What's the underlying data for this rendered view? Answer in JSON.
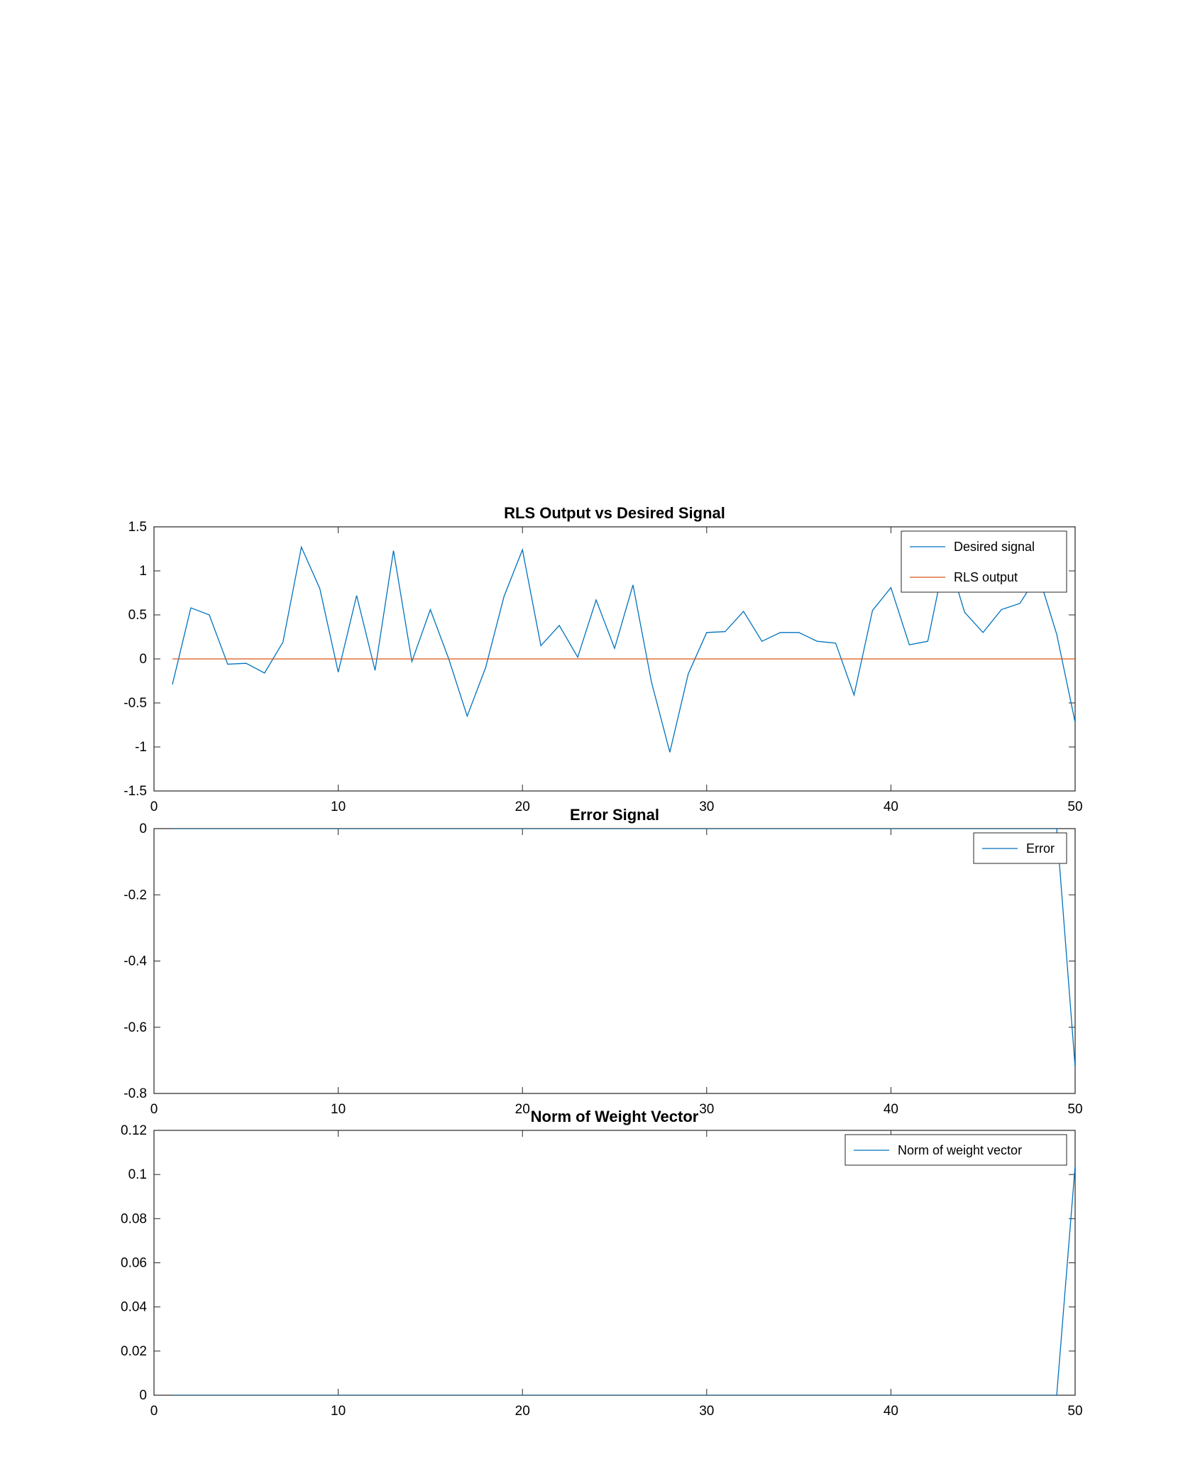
{
  "colors": {
    "blue": "#0072bd",
    "orange": "#d95319",
    "axis": "#262626"
  },
  "chart_data": [
    {
      "type": "line",
      "title": "RLS Output vs Desired Signal",
      "xlabel": "",
      "ylabel": "",
      "xlim": [
        0,
        50
      ],
      "ylim": [
        -1.5,
        1.5
      ],
      "xticks": [
        0,
        10,
        20,
        30,
        40,
        50
      ],
      "yticks": [
        -1.5,
        -1,
        -0.5,
        0,
        0.5,
        1,
        1.5
      ],
      "grid": false,
      "legend": "top-right",
      "series": [
        {
          "name": "Desired signal",
          "color": "#0072bd",
          "x": [
            1,
            2,
            3,
            4,
            5,
            6,
            7,
            8,
            9,
            10,
            11,
            12,
            13,
            14,
            15,
            16,
            17,
            18,
            19,
            20,
            21,
            22,
            23,
            24,
            25,
            26,
            27,
            28,
            29,
            30,
            31,
            32,
            33,
            34,
            35,
            36,
            37,
            38,
            39,
            40,
            41,
            42,
            43,
            44,
            45,
            46,
            47,
            48,
            49,
            50
          ],
          "y": [
            -0.29,
            0.58,
            0.5,
            -0.06,
            -0.05,
            -0.16,
            0.19,
            1.27,
            0.8,
            -0.15,
            0.72,
            -0.13,
            1.23,
            -0.03,
            0.56,
            0.0,
            -0.65,
            -0.1,
            0.71,
            1.24,
            0.15,
            0.38,
            0.02,
            0.67,
            0.12,
            0.84,
            -0.26,
            -1.06,
            -0.17,
            0.3,
            0.31,
            0.54,
            0.2,
            0.3,
            0.3,
            0.2,
            0.18,
            -0.41,
            0.55,
            0.81,
            0.16,
            0.2,
            1.22,
            0.53,
            0.3,
            0.56,
            0.63,
            0.96,
            0.28,
            -0.72
          ]
        },
        {
          "name": "RLS output",
          "color": "#d95319",
          "x": [
            1,
            50
          ],
          "y": [
            0,
            0
          ]
        }
      ]
    },
    {
      "type": "line",
      "title": "Error Signal",
      "xlabel": "",
      "ylabel": "",
      "xlim": [
        0,
        50
      ],
      "ylim": [
        -0.8,
        0
      ],
      "xticks": [
        0,
        10,
        20,
        30,
        40,
        50
      ],
      "yticks": [
        -0.8,
        -0.6,
        -0.4,
        -0.2,
        0
      ],
      "grid": false,
      "legend": "top-right",
      "series": [
        {
          "name": "Error",
          "color": "#0072bd",
          "x": [
            1,
            2,
            3,
            4,
            5,
            6,
            7,
            8,
            9,
            10,
            11,
            12,
            13,
            14,
            15,
            16,
            17,
            18,
            19,
            20,
            21,
            22,
            23,
            24,
            25,
            26,
            27,
            28,
            29,
            30,
            31,
            32,
            33,
            34,
            35,
            36,
            37,
            38,
            39,
            40,
            41,
            42,
            43,
            44,
            45,
            46,
            47,
            48,
            49,
            50
          ],
          "y": [
            0,
            0,
            0,
            0,
            0,
            0,
            0,
            0,
            0,
            0,
            0,
            0,
            0,
            0,
            0,
            0,
            0,
            0,
            0,
            0,
            0,
            0,
            0,
            0,
            0,
            0,
            0,
            0,
            0,
            0,
            0,
            0,
            0,
            0,
            0,
            0,
            0,
            0,
            0,
            0,
            0,
            0,
            0,
            0,
            0,
            0,
            0,
            0,
            0,
            -0.72
          ]
        }
      ]
    },
    {
      "type": "line",
      "title": "Norm of Weight Vector",
      "xlabel": "",
      "ylabel": "",
      "xlim": [
        0,
        50
      ],
      "ylim": [
        0,
        0.12
      ],
      "xticks": [
        0,
        10,
        20,
        30,
        40,
        50
      ],
      "yticks": [
        0,
        0.02,
        0.04,
        0.06,
        0.08,
        0.1,
        0.12
      ],
      "grid": false,
      "legend": "top-right",
      "series": [
        {
          "name": "Norm of weight vector",
          "color": "#0072bd",
          "x": [
            1,
            2,
            3,
            4,
            5,
            6,
            7,
            8,
            9,
            10,
            11,
            12,
            13,
            14,
            15,
            16,
            17,
            18,
            19,
            20,
            21,
            22,
            23,
            24,
            25,
            26,
            27,
            28,
            29,
            30,
            31,
            32,
            33,
            34,
            35,
            36,
            37,
            38,
            39,
            40,
            41,
            42,
            43,
            44,
            45,
            46,
            47,
            48,
            49,
            50
          ],
          "y": [
            0,
            0,
            0,
            0,
            0,
            0,
            0,
            0,
            0,
            0,
            0,
            0,
            0,
            0,
            0,
            0,
            0,
            0,
            0,
            0,
            0,
            0,
            0,
            0,
            0,
            0,
            0,
            0,
            0,
            0,
            0,
            0,
            0,
            0,
            0,
            0,
            0,
            0,
            0,
            0,
            0,
            0,
            0,
            0,
            0,
            0,
            0,
            0,
            0,
            0.104
          ]
        }
      ]
    }
  ]
}
